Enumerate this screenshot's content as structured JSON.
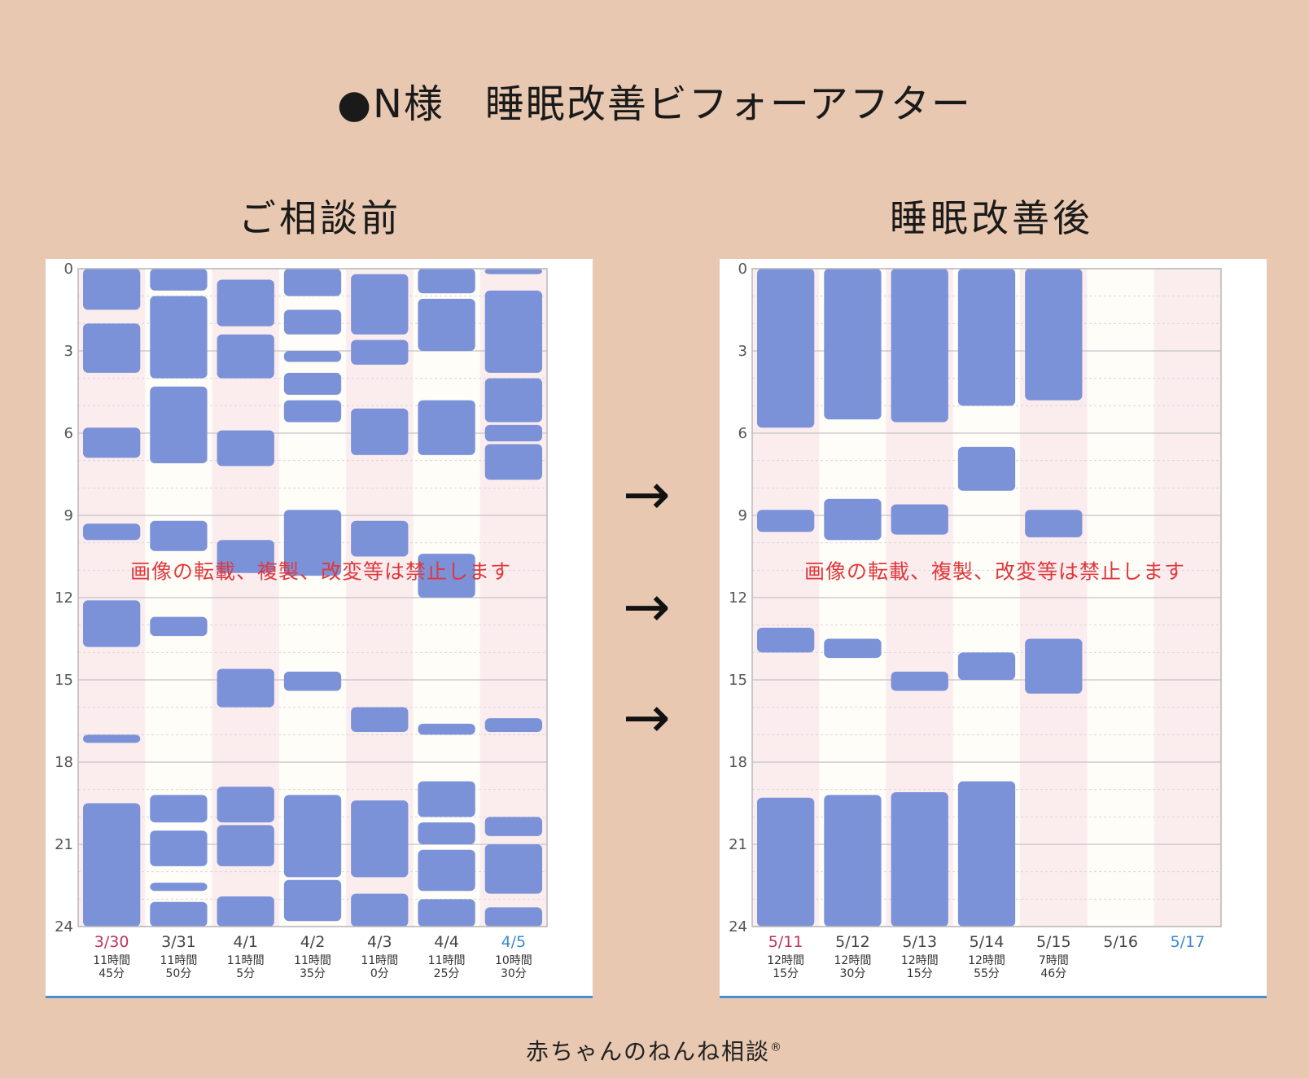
{
  "title": "●N様　睡眠改善ビフォーアフター",
  "arrow_glyph": "→",
  "footer": {
    "text": "赤ちゃんのねんね相談",
    "mark": "®"
  },
  "watermark": "画像の転載、複製、改変等は禁止します",
  "colors": {
    "background": "#e8c8b1",
    "sleep_block": "#7b92d8",
    "weekend_column": "#fbecee",
    "weekday_column": "#fffdf8",
    "saturday_label": "#3f88cc",
    "sunday_label": "#c0335a",
    "watermark": "#e0383c"
  },
  "chart_data": [
    {
      "type": "timeline",
      "title": "ご相談前",
      "y_axis": {
        "range": [
          0,
          24
        ],
        "ticks": [
          0,
          3,
          6,
          9,
          12,
          15,
          18,
          21,
          24
        ],
        "direction": "downward"
      },
      "days": [
        {
          "date": "3/30",
          "label_color": "sunday",
          "shade": "weekend",
          "total_line1": "11時間",
          "total_line2": "45分",
          "sleep": [
            [
              0,
              1.5
            ],
            [
              2,
              3.8
            ],
            [
              5.8,
              6.9
            ],
            [
              9.3,
              9.9
            ],
            [
              12.1,
              13.8
            ],
            [
              17,
              17.3
            ],
            [
              19.5,
              24
            ]
          ]
        },
        {
          "date": "3/31",
          "label_color": "default",
          "shade": "weekday",
          "total_line1": "11時間",
          "total_line2": "50分",
          "sleep": [
            [
              0,
              0.8
            ],
            [
              1,
              4
            ],
            [
              4.3,
              7.1
            ],
            [
              9.2,
              10.3
            ],
            [
              12.7,
              13.4
            ],
            [
              19.2,
              20.2
            ],
            [
              20.5,
              21.8
            ],
            [
              22.4,
              22.7
            ],
            [
              23.1,
              24
            ]
          ]
        },
        {
          "date": "4/1",
          "label_color": "default",
          "shade": "weekend",
          "total_line1": "11時間",
          "total_line2": "5分",
          "sleep": [
            [
              0.4,
              2.1
            ],
            [
              2.4,
              4
            ],
            [
              5.9,
              7.2
            ],
            [
              9.9,
              11.1
            ],
            [
              14.6,
              16
            ],
            [
              18.9,
              20.2
            ],
            [
              20.3,
              21.8
            ],
            [
              22.9,
              24
            ]
          ]
        },
        {
          "date": "4/2",
          "label_color": "default",
          "shade": "weekday",
          "total_line1": "11時間",
          "total_line2": "35分",
          "sleep": [
            [
              0,
              1
            ],
            [
              1.5,
              2.4
            ],
            [
              3,
              3.4
            ],
            [
              3.8,
              4.6
            ],
            [
              4.8,
              5.6
            ],
            [
              8.8,
              11.2
            ],
            [
              14.7,
              15.4
            ],
            [
              19.2,
              22.2
            ],
            [
              22.3,
              23.8
            ]
          ]
        },
        {
          "date": "4/3",
          "label_color": "default",
          "shade": "weekend",
          "total_line1": "11時間",
          "total_line2": "0分",
          "sleep": [
            [
              0.2,
              2.4
            ],
            [
              2.6,
              3.5
            ],
            [
              5.1,
              6.8
            ],
            [
              9.2,
              10.5
            ],
            [
              16,
              16.9
            ],
            [
              19.4,
              22.2
            ],
            [
              22.8,
              24
            ]
          ]
        },
        {
          "date": "4/4",
          "label_color": "default",
          "shade": "weekday",
          "total_line1": "11時間",
          "total_line2": "25分",
          "sleep": [
            [
              0,
              0.9
            ],
            [
              1.1,
              3
            ],
            [
              4.8,
              6.8
            ],
            [
              10.4,
              12
            ],
            [
              16.6,
              17
            ],
            [
              18.7,
              20
            ],
            [
              20.2,
              21
            ],
            [
              21.2,
              22.7
            ],
            [
              23,
              24
            ]
          ]
        },
        {
          "date": "4/5",
          "label_color": "saturday",
          "shade": "weekend",
          "total_line1": "10時間",
          "total_line2": "30分",
          "sleep": [
            [
              0,
              0.2
            ],
            [
              0.8,
              3.8
            ],
            [
              4,
              5.6
            ],
            [
              5.7,
              6.3
            ],
            [
              6.4,
              7.7
            ],
            [
              16.4,
              16.9
            ],
            [
              20,
              20.7
            ],
            [
              21,
              22.8
            ],
            [
              23.3,
              24
            ]
          ]
        }
      ]
    },
    {
      "type": "timeline",
      "title": "睡眠改善後",
      "y_axis": {
        "range": [
          0,
          24
        ],
        "ticks": [
          0,
          3,
          6,
          9,
          12,
          15,
          18,
          21,
          24
        ],
        "direction": "downward"
      },
      "days": [
        {
          "date": "5/11",
          "label_color": "sunday",
          "shade": "weekend",
          "total_line1": "12時間",
          "total_line2": "15分",
          "sleep": [
            [
              0,
              5.8
            ],
            [
              8.8,
              9.6
            ],
            [
              13.1,
              14
            ],
            [
              19.3,
              24
            ]
          ]
        },
        {
          "date": "5/12",
          "label_color": "default",
          "shade": "weekday",
          "total_line1": "12時間",
          "total_line2": "30分",
          "sleep": [
            [
              0,
              5.5
            ],
            [
              8.4,
              9.9
            ],
            [
              13.5,
              14.2
            ],
            [
              19.2,
              24
            ]
          ]
        },
        {
          "date": "5/13",
          "label_color": "default",
          "shade": "weekend",
          "total_line1": "12時間",
          "total_line2": "15分",
          "sleep": [
            [
              0,
              5.6
            ],
            [
              8.6,
              9.7
            ],
            [
              14.7,
              15.4
            ],
            [
              19.1,
              24
            ]
          ]
        },
        {
          "date": "5/14",
          "label_color": "default",
          "shade": "weekday",
          "total_line1": "12時間",
          "total_line2": "55分",
          "sleep": [
            [
              0,
              5
            ],
            [
              6.5,
              8.1
            ],
            [
              14,
              15
            ],
            [
              18.7,
              24
            ]
          ]
        },
        {
          "date": "5/15",
          "label_color": "default",
          "shade": "weekend",
          "total_line1": "7時間",
          "total_line2": "46分",
          "sleep": [
            [
              0,
              4.8
            ],
            [
              8.8,
              9.8
            ],
            [
              13.5,
              15.5
            ]
          ]
        },
        {
          "date": "5/16",
          "label_color": "default",
          "shade": "weekday",
          "total_line1": "",
          "total_line2": "",
          "sleep": []
        },
        {
          "date": "5/17",
          "label_color": "saturday",
          "shade": "weekend",
          "total_line1": "",
          "total_line2": "",
          "sleep": []
        }
      ]
    }
  ]
}
